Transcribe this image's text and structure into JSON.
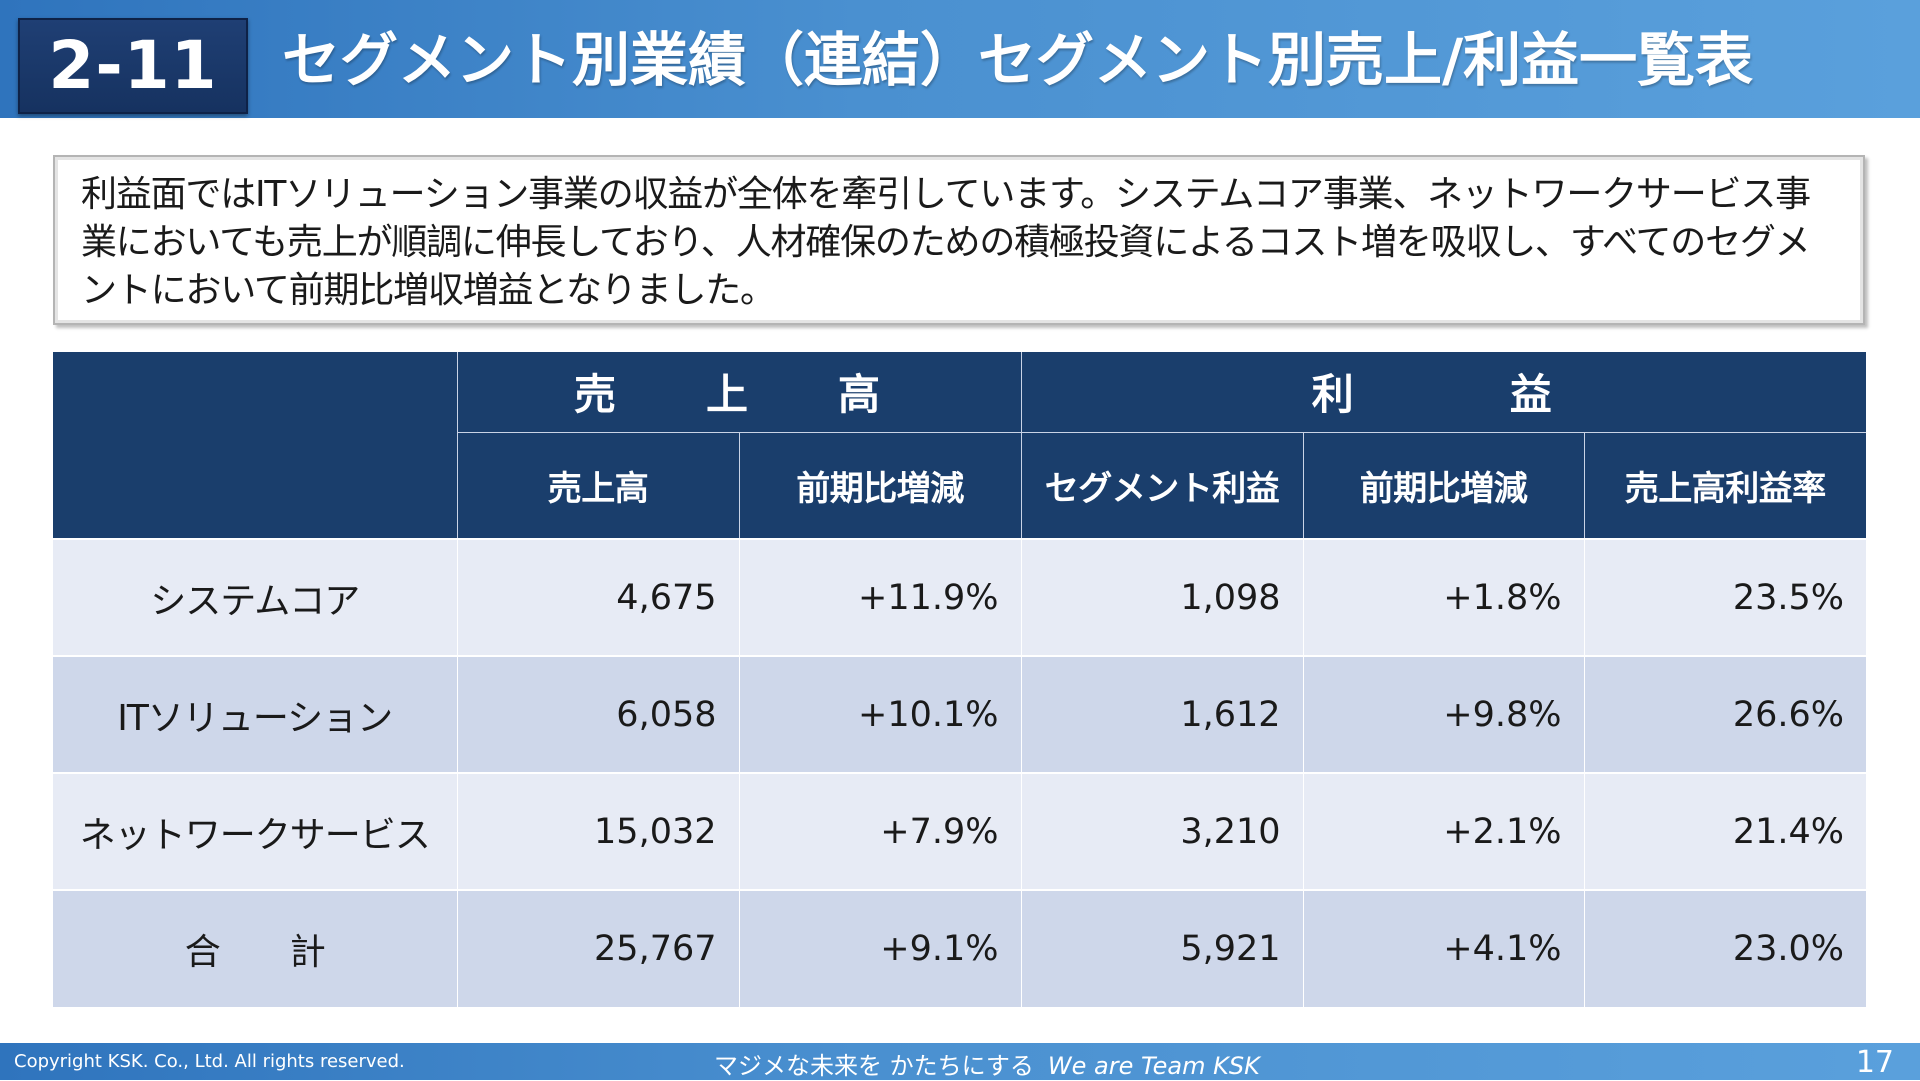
{
  "header": {
    "section_number": "2-11",
    "title": "セグメント別業績（連結）セグメント別売上/利益一覧表"
  },
  "summary": {
    "text": "利益面ではITソリューション事業の収益が全体を牽引しています。システムコア事業、ネットワークサービス事業においても売上が順調に伸長しており、人材確保のための積極投資によるコスト増を吸収し、すべてのセグメントにおいて前期比増収増益となりました。"
  },
  "table": {
    "groups": {
      "sales": "売　上　高",
      "profit": "利　　益"
    },
    "columns": {
      "sales": "売上高",
      "sales_change": "前期比増減",
      "segment_profit": "セグメント利益",
      "profit_change": "前期比増減",
      "margin": "売上高利益率"
    },
    "rows": [
      {
        "segment": "システムコア",
        "sales": "4,675",
        "sales_change": "+11.9%",
        "profit": "1,098",
        "profit_change": "+1.8%",
        "margin": "23.5%"
      },
      {
        "segment": "ITソリューション",
        "sales": "6,058",
        "sales_change": "+10.1%",
        "profit": "1,612",
        "profit_change": "+9.8%",
        "margin": "26.6%"
      },
      {
        "segment": "ネットワークサービス",
        "sales": "15,032",
        "sales_change": "+7.9%",
        "profit": "3,210",
        "profit_change": "+2.1%",
        "margin": "21.4%"
      },
      {
        "segment": "合　　計",
        "sales": "25,767",
        "sales_change": "+9.1%",
        "profit": "5,921",
        "profit_change": "+4.1%",
        "margin": "23.0%"
      }
    ]
  },
  "footer": {
    "copyright": "Copyright KSK. Co., Ltd. All rights reserved.",
    "slogan_jp": "マジメな未来を かたちにする",
    "slogan_en": "We are Team KSK",
    "page_number": "17"
  }
}
